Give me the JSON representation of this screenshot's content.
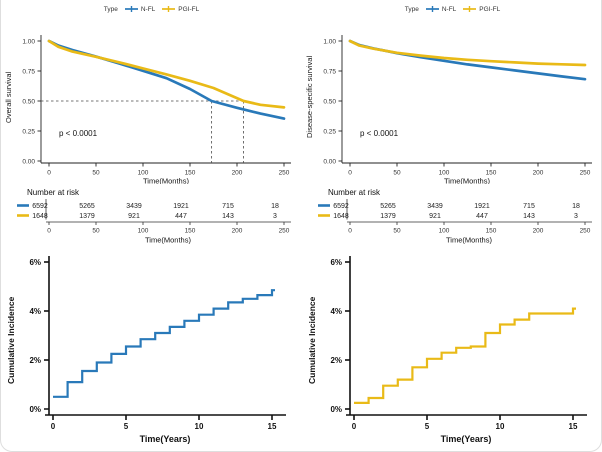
{
  "legend": {
    "title": "Type",
    "items": [
      {
        "label": "N-FL",
        "color": "#2979b9"
      },
      {
        "label": "PGI-FL",
        "color": "#e9ba17"
      }
    ]
  },
  "chart_data": [
    {
      "id": "overall-survival",
      "type": "line",
      "ylabel": "Overall survival",
      "xlabel": "Time(Months)",
      "xlim": [
        0,
        250
      ],
      "ylim": [
        0,
        1
      ],
      "x_ticks": [
        0,
        50,
        100,
        150,
        200,
        250
      ],
      "y_ticks": [
        0,
        0.25,
        0.5,
        0.75,
        1
      ],
      "y_tick_labels": [
        "0.00",
        "0.25",
        "0.50",
        "0.75",
        "1.00"
      ],
      "pvalue": "p < 0.0001",
      "grid": false,
      "legend_position": "top",
      "median_markers": {
        "y": 0.5,
        "x": [
          173,
          207
        ]
      },
      "series": [
        {
          "name": "N-FL",
          "color": "#2979b9",
          "points": [
            [
              0,
              1.0
            ],
            [
              10,
              0.962
            ],
            [
              25,
              0.925
            ],
            [
              50,
              0.87
            ],
            [
              75,
              0.812
            ],
            [
              100,
              0.752
            ],
            [
              125,
              0.69
            ],
            [
              150,
              0.6
            ],
            [
              173,
              0.5
            ],
            [
              200,
              0.443
            ],
            [
              225,
              0.395
            ],
            [
              250,
              0.353
            ]
          ]
        },
        {
          "name": "PGI-FL",
          "color": "#e9ba17",
          "points": [
            [
              0,
              1.0
            ],
            [
              10,
              0.952
            ],
            [
              25,
              0.912
            ],
            [
              50,
              0.868
            ],
            [
              75,
              0.822
            ],
            [
              100,
              0.772
            ],
            [
              125,
              0.722
            ],
            [
              150,
              0.668
            ],
            [
              175,
              0.608
            ],
            [
              207,
              0.5
            ],
            [
              225,
              0.468
            ],
            [
              250,
              0.447
            ]
          ]
        }
      ],
      "risk_table": {
        "title": "Number at risk",
        "xlabel": "Time(Months)",
        "x_ticks": [
          0,
          50,
          100,
          150,
          200,
          250
        ],
        "rows": [
          {
            "name": "N-FL",
            "color": "#2979b9",
            "values": [
              "6592",
              "5265",
              "3439",
              "1921",
              "715",
              "18"
            ]
          },
          {
            "name": "PGI-FL",
            "color": "#e9ba17",
            "values": [
              "1648",
              "1379",
              "921",
              "447",
              "143",
              "3"
            ]
          }
        ]
      }
    },
    {
      "id": "disease-specific-survival",
      "type": "line",
      "ylabel": "Disease-specific survival",
      "xlabel": "Time(Months)",
      "xlim": [
        0,
        250
      ],
      "ylim": [
        0,
        1
      ],
      "x_ticks": [
        0,
        50,
        100,
        150,
        200,
        250
      ],
      "y_ticks": [
        0,
        0.25,
        0.5,
        0.75,
        1
      ],
      "y_tick_labels": [
        "0.00",
        "0.25",
        "0.50",
        "0.75",
        "1.00"
      ],
      "pvalue": "p < 0.0001",
      "grid": false,
      "legend_position": "top",
      "series": [
        {
          "name": "N-FL",
          "color": "#2979b9",
          "points": [
            [
              0,
              1.0
            ],
            [
              10,
              0.966
            ],
            [
              25,
              0.938
            ],
            [
              50,
              0.898
            ],
            [
              75,
              0.865
            ],
            [
              100,
              0.835
            ],
            [
              125,
              0.805
            ],
            [
              150,
              0.78
            ],
            [
              175,
              0.755
            ],
            [
              200,
              0.73
            ],
            [
              225,
              0.705
            ],
            [
              250,
              0.682
            ]
          ]
        },
        {
          "name": "PGI-FL",
          "color": "#e9ba17",
          "points": [
            [
              0,
              1.0
            ],
            [
              10,
              0.962
            ],
            [
              25,
              0.936
            ],
            [
              50,
              0.902
            ],
            [
              75,
              0.878
            ],
            [
              100,
              0.858
            ],
            [
              125,
              0.843
            ],
            [
              150,
              0.832
            ],
            [
              175,
              0.822
            ],
            [
              200,
              0.812
            ],
            [
              225,
              0.806
            ],
            [
              250,
              0.8
            ]
          ]
        }
      ],
      "risk_table": {
        "title": "Number at risk",
        "xlabel": "Time(Months)",
        "x_ticks": [
          0,
          50,
          100,
          150,
          200,
          250
        ],
        "rows": [
          {
            "name": "N-FL",
            "color": "#2979b9",
            "values": [
              "6592",
              "5265",
              "3439",
              "1921",
              "715",
              "18"
            ]
          },
          {
            "name": "PGI-FL",
            "color": "#e9ba17",
            "values": [
              "1648",
              "1379",
              "921",
              "447",
              "143",
              "3"
            ]
          }
        ]
      }
    },
    {
      "id": "cumulative-incidence-nfl",
      "type": "step",
      "ylabel": "Cumulative Incidence",
      "xlabel": "Time(Years)",
      "xlim": [
        0,
        15
      ],
      "ylim": [
        0,
        6
      ],
      "x_ticks": [
        0,
        5,
        10,
        15
      ],
      "y_ticks": [
        0,
        2,
        4,
        6
      ],
      "y_tick_labels": [
        "0%",
        "2%",
        "4%",
        "6%"
      ],
      "grid": false,
      "series": [
        {
          "name": "N-FL",
          "color": "#2979b9",
          "x": [
            0,
            1,
            2,
            3,
            4,
            5,
            6,
            7,
            8,
            9,
            10,
            11,
            12,
            13,
            14,
            15
          ],
          "values": [
            0.5,
            1.1,
            1.55,
            1.9,
            2.25,
            2.55,
            2.85,
            3.1,
            3.35,
            3.6,
            3.85,
            4.1,
            4.35,
            4.5,
            4.65,
            4.85
          ]
        }
      ]
    },
    {
      "id": "cumulative-incidence-pgifl",
      "type": "step",
      "ylabel": "Cumulative Incidence",
      "xlabel": "Time(Years)",
      "xlim": [
        0,
        15
      ],
      "ylim": [
        0,
        6
      ],
      "x_ticks": [
        0,
        5,
        10,
        15
      ],
      "y_ticks": [
        0,
        2,
        4,
        6
      ],
      "y_tick_labels": [
        "0%",
        "2%",
        "4%",
        "6%"
      ],
      "grid": false,
      "series": [
        {
          "name": "PGI-FL",
          "color": "#e9ba17",
          "x": [
            0,
            1,
            2,
            3,
            4,
            5,
            6,
            7,
            8,
            9,
            10,
            11,
            12,
            13,
            14,
            15
          ],
          "values": [
            0.25,
            0.45,
            0.95,
            1.2,
            1.7,
            2.05,
            2.3,
            2.5,
            2.55,
            3.1,
            3.45,
            3.65,
            3.9,
            3.9,
            3.9,
            4.1
          ]
        }
      ]
    }
  ]
}
